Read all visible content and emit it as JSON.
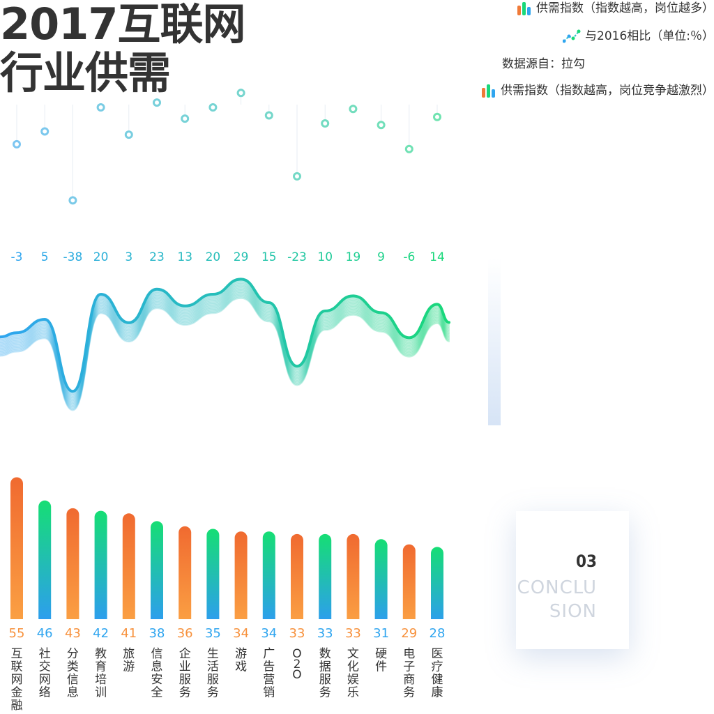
{
  "title": {
    "line1": "2017互联网",
    "line2": "行业供需"
  },
  "legend": {
    "item1": "供需指数（指数越高，岗位越多）",
    "item2": "与2016相比（单位:％）",
    "source": "数据源自：拉勾",
    "item3": "供需指数（指数越高，岗位竞争越激烈）"
  },
  "colors": {
    "orange": "#f07a38",
    "green": "#19d87a",
    "blue": "#2fa5ef",
    "text": "#333333"
  },
  "conclusion": {
    "number": "03",
    "text": "CONCLU SION"
  },
  "chart_data": {
    "type": "bar",
    "categories": [
      "互联网金融",
      "社交网络",
      "分类信息",
      "教育培训",
      "旅游",
      "信息安全",
      "企业服务",
      "生活服务",
      "游戏",
      "广告营销",
      "O2O",
      "数据服务",
      "文化娱乐",
      "硬件",
      "电子商务",
      "医疗健康"
    ],
    "series": [
      {
        "values": [
          55,
          46,
          43,
          42,
          41,
          38,
          36,
          35,
          34,
          34,
          33,
          33,
          33,
          31,
          29,
          28
        ]
      },
      {
        "values": [
          -3,
          5,
          -38,
          20,
          3,
          23,
          13,
          20,
          29,
          15,
          -23,
          10,
          19,
          9,
          -6,
          14
        ]
      }
    ],
    "bar_colors": [
      "orange",
      "green",
      "orange",
      "green",
      "orange",
      "green",
      "orange",
      "green",
      "orange",
      "green",
      "orange",
      "green",
      "orange",
      "green",
      "orange",
      "green"
    ],
    "title": "",
    "xlabel": "",
    "ylabel": ""
  }
}
